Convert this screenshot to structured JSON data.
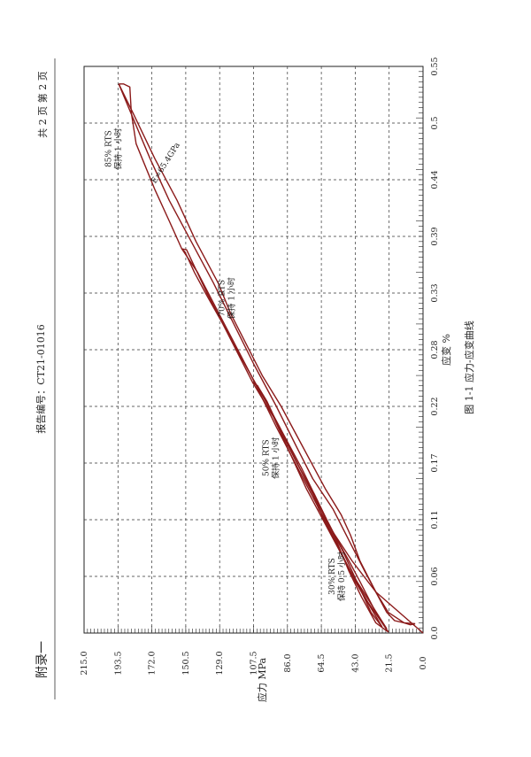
{
  "header": {
    "appendix_label": "附录一",
    "report_number": "报告编号：CT21-01016",
    "page_count": "共 2 页 第 2 页"
  },
  "chart_data": {
    "type": "line",
    "title": "",
    "caption": "图 1-1  应力-应变曲线",
    "xlabel": "应变 %",
    "ylabel": "应力 MPa",
    "xlim": [
      0,
      0.55
    ],
    "ylim": [
      0,
      215
    ],
    "x_ticks": [
      "0.0",
      "0.06",
      "0.11",
      "0.17",
      "0.22",
      "0.28",
      "0.33",
      "0.39",
      "0.44",
      "0.5",
      "0.55"
    ],
    "x_tick_values": [
      0,
      0.055,
      0.11,
      0.165,
      0.22,
      0.275,
      0.33,
      0.385,
      0.44,
      0.495,
      0.55
    ],
    "y_ticks": [
      "0.0",
      "21.5",
      "43.0",
      "64.5",
      "86.0",
      "107.5",
      "129.0",
      "150.5",
      "172.0",
      "193.5",
      "215.0"
    ],
    "y_tick_values": [
      0,
      21.5,
      43,
      64.5,
      86,
      107.5,
      129,
      150.5,
      172,
      193.5,
      215
    ],
    "grid": true,
    "line_color": "#8b1a1a",
    "annotations": [
      {
        "lines": [
          "30% RTS",
          "保持 0.5 小时"
        ],
        "x": 0.055,
        "y": 56
      },
      {
        "lines": [
          "50% RTS",
          "保持 1 小时"
        ],
        "x": 0.17,
        "y": 98
      },
      {
        "lines": [
          "70% RTS",
          "保持 1 小时"
        ],
        "x": 0.325,
        "y": 126
      },
      {
        "lines": [
          "85% RTS",
          "保持 1 小时"
        ],
        "x": 0.47,
        "y": 198
      },
      {
        "lines": [
          "E=65.4GPa"
        ],
        "x": 0.455,
        "y": 162,
        "along_line": true
      }
    ],
    "series": [
      {
        "values": [
          [
            0,
            0
          ],
          [
            0.04,
            30
          ],
          [
            0.07,
            45
          ],
          [
            0.1,
            58
          ],
          [
            0.12,
            66
          ],
          [
            0.14,
            71
          ]
        ]
      },
      {
        "values": [
          [
            0.14,
            71
          ],
          [
            0.135,
            69
          ],
          [
            0.09,
            55
          ],
          [
            0.06,
            47
          ],
          [
            0.035,
            39
          ],
          [
            0.01,
            30
          ],
          [
            0.001,
            22
          ]
        ]
      },
      {
        "values": [
          [
            0.001,
            22
          ],
          [
            0.03,
            35
          ],
          [
            0.06,
            46
          ],
          [
            0.09,
            56
          ],
          [
            0.11,
            63
          ],
          [
            0.14,
            71
          ],
          [
            0.165,
            80
          ],
          [
            0.195,
            90
          ],
          [
            0.225,
            99
          ],
          [
            0.24,
            105
          ],
          [
            0.243,
            108
          ]
        ]
      },
      {
        "values": [
          [
            0.243,
            108
          ],
          [
            0.24,
            105
          ],
          [
            0.2,
            91
          ],
          [
            0.15,
            75
          ],
          [
            0.1,
            58
          ],
          [
            0.07,
            47
          ],
          [
            0.05,
            40
          ],
          [
            0.02,
            30
          ],
          [
            0.004,
            23
          ]
        ]
      },
      {
        "values": [
          [
            0.004,
            23
          ],
          [
            0.06,
            46
          ],
          [
            0.1,
            60
          ],
          [
            0.14,
            74
          ],
          [
            0.18,
            86
          ],
          [
            0.21,
            95
          ],
          [
            0.243,
            108
          ],
          [
            0.27,
            117
          ],
          [
            0.3,
            127
          ],
          [
            0.33,
            138
          ],
          [
            0.35,
            145
          ],
          [
            0.37,
            151
          ],
          [
            0.373,
            153
          ]
        ]
      },
      {
        "values": [
          [
            0.373,
            153
          ],
          [
            0.372,
            150
          ],
          [
            0.33,
            137
          ],
          [
            0.28,
            120
          ],
          [
            0.22,
            98
          ],
          [
            0.16,
            77
          ],
          [
            0.11,
            61
          ],
          [
            0.08,
            51
          ],
          [
            0.05,
            42
          ],
          [
            0.02,
            33
          ],
          [
            0.006,
            26
          ]
        ]
      },
      {
        "values": [
          [
            0.006,
            26
          ],
          [
            0.05,
            43
          ],
          [
            0.1,
            59
          ],
          [
            0.15,
            76
          ],
          [
            0.2,
            93
          ],
          [
            0.25,
            109
          ],
          [
            0.3,
            126
          ],
          [
            0.35,
            143
          ],
          [
            0.373,
            153
          ],
          [
            0.4,
            161
          ],
          [
            0.43,
            170
          ],
          [
            0.46,
            178
          ],
          [
            0.475,
            182
          ],
          [
            0.505,
            185
          ]
        ]
      },
      {
        "values": [
          [
            0.505,
            185
          ],
          [
            0.53,
            186
          ],
          [
            0.533,
            190
          ],
          [
            0.533,
            193
          ]
        ]
      },
      {
        "values": [
          [
            0.533,
            193
          ],
          [
            0.505,
            184
          ],
          [
            0.46,
            170
          ],
          [
            0.42,
            156
          ],
          [
            0.38,
            144
          ],
          [
            0.34,
            130
          ],
          [
            0.31,
            122
          ],
          [
            0.28,
            112
          ],
          [
            0.25,
            102
          ],
          [
            0.22,
            90
          ],
          [
            0.18,
            76
          ],
          [
            0.14,
            62
          ],
          [
            0.115,
            52
          ],
          [
            0.095,
            46
          ],
          [
            0.07,
            40
          ],
          [
            0.04,
            30
          ],
          [
            0.02,
            23
          ],
          [
            0.012,
            18
          ],
          [
            0.01,
            12
          ],
          [
            0.008,
            8
          ],
          [
            0.009,
            5
          ]
        ]
      },
      {
        "values": [
          [
            0.009,
            5
          ],
          [
            0.01,
            12
          ],
          [
            0.02,
            22
          ],
          [
            0.04,
            30
          ],
          [
            0.06,
            37
          ],
          [
            0.09,
            47
          ],
          [
            0.12,
            57
          ],
          [
            0.15,
            70
          ],
          [
            0.18,
            80
          ],
          [
            0.22,
            93
          ],
          [
            0.26,
            107
          ],
          [
            0.3,
            120
          ],
          [
            0.34,
            133
          ],
          [
            0.38,
            147
          ],
          [
            0.42,
            161
          ],
          [
            0.46,
            173
          ],
          [
            0.5,
            184
          ],
          [
            0.533,
            193
          ]
        ]
      }
    ]
  }
}
